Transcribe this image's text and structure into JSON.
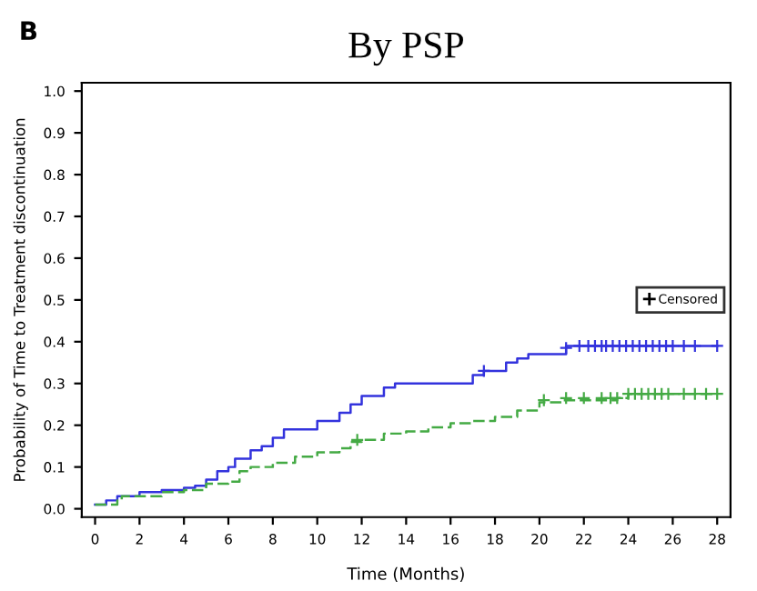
{
  "chart_data": {
    "type": "step",
    "title": "By PSP",
    "xlabel": "Time (Months)",
    "ylabel": "Probability of Time to Treatment discontinuation",
    "annotations": [
      "B"
    ],
    "xlim": [
      -0.6,
      28.6
    ],
    "xticks": [
      0,
      2,
      4,
      6,
      8,
      10,
      12,
      14,
      16,
      18,
      20,
      22,
      24,
      26,
      28
    ],
    "ylim": [
      -0.02,
      1.02
    ],
    "yticks": [
      {
        "value": 0,
        "label": "0.0"
      },
      {
        "value": 0.1,
        "label": "0.1"
      },
      {
        "value": 0.2,
        "label": "0.2"
      },
      {
        "value": 0.3,
        "label": "0.3"
      },
      {
        "value": 0.4,
        "label": "0.4"
      },
      {
        "value": 0.5,
        "label": "0.5"
      },
      {
        "value": 0.6,
        "label": "0.6"
      },
      {
        "value": 0.7,
        "label": "0.7"
      },
      {
        "value": 0.8,
        "label": "0.8"
      },
      {
        "value": 0.9,
        "label": "0.9"
      },
      {
        "value": 1,
        "label": "1.0"
      }
    ],
    "grid": false,
    "legend": "center right",
    "series": [
      {
        "color": "#3333dd",
        "line_style": "solid",
        "x": [
          0,
          0.5,
          1,
          2,
          3,
          4,
          4.5,
          5,
          5.5,
          6,
          6.3,
          7,
          7.5,
          8,
          8.5,
          10,
          11,
          11.5,
          12,
          13,
          13.5,
          16.5,
          17,
          17.5,
          18.5,
          19,
          19.5,
          21,
          21.2,
          28
        ],
        "values": [
          0.01,
          0.02,
          0.03,
          0.04,
          0.045,
          0.05,
          0.055,
          0.07,
          0.09,
          0.1,
          0.12,
          0.14,
          0.15,
          0.17,
          0.19,
          0.21,
          0.23,
          0.25,
          0.27,
          0.29,
          0.3,
          0.3,
          0.32,
          0.33,
          0.35,
          0.36,
          0.37,
          0.37,
          0.39,
          0.39
        ]
      },
      {
        "color": "#44aa44",
        "line_style": "dashed",
        "x": [
          0,
          1,
          1.2,
          3,
          4,
          5,
          6,
          6.5,
          7,
          8,
          9,
          10,
          11,
          11.5,
          12,
          13,
          14,
          15,
          16,
          17,
          18,
          19,
          20,
          21,
          23.5,
          24,
          28
        ],
        "values": [
          0.01,
          0.02,
          0.03,
          0.04,
          0.045,
          0.06,
          0.065,
          0.09,
          0.1,
          0.11,
          0.125,
          0.135,
          0.145,
          0.16,
          0.165,
          0.18,
          0.185,
          0.195,
          0.205,
          0.21,
          0.22,
          0.235,
          0.255,
          0.26,
          0.265,
          0.275,
          0.275
        ]
      },
      {
        "type": "scatter",
        "name": "Censored",
        "marker": "cross",
        "color": "#000000",
        "x": [
          17.5,
          21.2,
          21.8,
          22.2,
          22.5,
          22.8,
          23,
          23.3,
          23.6,
          23.9,
          24.2,
          24.5,
          24.8,
          25.1,
          25.4,
          25.7,
          26,
          26.5,
          27,
          28,
          11.8,
          20.2,
          21.2,
          22,
          22.8,
          23.2,
          23.5,
          24,
          24.3,
          24.6,
          24.9,
          25.2,
          25.5,
          25.8,
          26.5,
          27,
          27.5,
          28
        ],
        "values": [
          0.33,
          0.385,
          0.39,
          0.39,
          0.39,
          0.39,
          0.39,
          0.39,
          0.39,
          0.39,
          0.39,
          0.39,
          0.39,
          0.39,
          0.39,
          0.39,
          0.39,
          0.39,
          0.39,
          0.39,
          0.165,
          0.26,
          0.265,
          0.265,
          0.265,
          0.265,
          0.265,
          0.275,
          0.275,
          0.275,
          0.275,
          0.275,
          0.275,
          0.275,
          0.275,
          0.275,
          0.275,
          0.275
        ],
        "colors": [
          "#3333dd",
          "#3333dd",
          "#3333dd",
          "#3333dd",
          "#3333dd",
          "#3333dd",
          "#3333dd",
          "#3333dd",
          "#3333dd",
          "#3333dd",
          "#3333dd",
          "#3333dd",
          "#3333dd",
          "#3333dd",
          "#3333dd",
          "#3333dd",
          "#3333dd",
          "#3333dd",
          "#3333dd",
          "#3333dd",
          "#44aa44",
          "#44aa44",
          "#44aa44",
          "#44aa44",
          "#44aa44",
          "#44aa44",
          "#44aa44",
          "#44aa44",
          "#44aa44",
          "#44aa44",
          "#44aa44",
          "#44aa44",
          "#44aa44",
          "#44aa44",
          "#44aa44",
          "#44aa44",
          "#44aa44",
          "#44aa44"
        ]
      }
    ]
  }
}
